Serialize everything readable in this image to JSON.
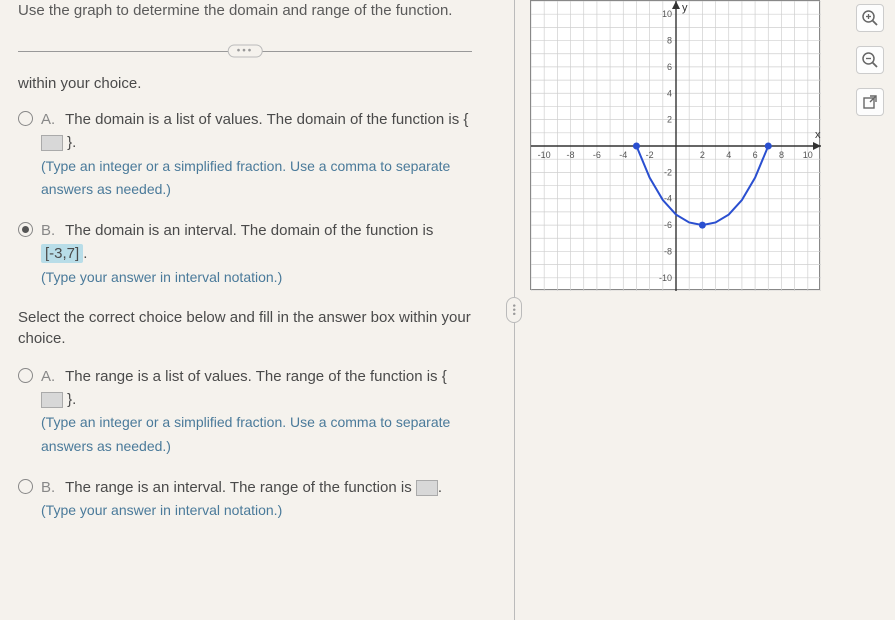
{
  "prompt": "Use the graph to determine the domain and range of the function.",
  "within": "within your choice.",
  "domain_choices": {
    "A": {
      "pre": "The domain is a list of values. The domain of the function is {",
      "post": "}.",
      "hint": "(Type an integer or a simplified fraction. Use a comma to separate answers as needed.)"
    },
    "B": {
      "pre": "The domain is an interval. The domain of the function is ",
      "answer": "[-3,7]",
      "post": ".",
      "hint": "(Type your answer in interval notation.)"
    }
  },
  "select_prompt": "Select the correct choice below and fill in the answer box within your choice.",
  "range_choices": {
    "A": {
      "pre": "The range is a list of values. The range of the function is {",
      "post": "}.",
      "hint": "(Type an integer or a simplified fraction. Use a comma to separate answers as needed.)"
    },
    "B": {
      "pre": "The range is an interval. The range of the function is ",
      "post": ".",
      "hint": "(Type your answer in interval notation.)"
    }
  },
  "toolbar": {
    "zoom_in": "⊕",
    "zoom_out": "⊖",
    "open": "↗"
  },
  "graph": {
    "xlim": [
      -11,
      11
    ],
    "ylim": [
      -11,
      11
    ],
    "tick_step": 2,
    "axis_labels": {
      "x": "x",
      "y": "y"
    },
    "grid_color": "#cfcfcf",
    "axis_color": "#333333",
    "curve_color": "#2a4fd0",
    "point_fill": "#2a4fd0",
    "curve": [
      [
        -3,
        0
      ],
      [
        -2,
        -2.4
      ],
      [
        -1,
        -4.1
      ],
      [
        0,
        -5.2
      ],
      [
        1,
        -5.8
      ],
      [
        2,
        -6.0
      ],
      [
        3,
        -5.8
      ],
      [
        4,
        -5.2
      ],
      [
        5,
        -4.1
      ],
      [
        6,
        -2.4
      ],
      [
        7,
        0
      ]
    ],
    "endpoints": [
      [
        -3,
        0
      ],
      [
        2,
        -6
      ],
      [
        7,
        0
      ]
    ]
  }
}
